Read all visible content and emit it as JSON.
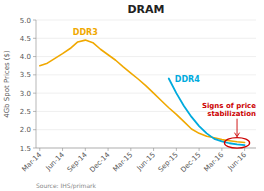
{
  "chart_data": {
    "type": "line",
    "title": "DRAM",
    "ylabel": "4Gb Spot Prices ($)",
    "source": "Source: IHS/primark",
    "xlim": [
      -0.5,
      28.5
    ],
    "xticks": [
      {
        "value": 0,
        "label": "Mar-14"
      },
      {
        "value": 3,
        "label": "Jun-14"
      },
      {
        "value": 6,
        "label": "Sep-14"
      },
      {
        "value": 9,
        "label": "Dec-14"
      },
      {
        "value": 12,
        "label": "Mar-15"
      },
      {
        "value": 15,
        "label": "Jun-15"
      },
      {
        "value": 18,
        "label": "Sep-15"
      },
      {
        "value": 21,
        "label": "Dec-15"
      },
      {
        "value": 24,
        "label": "Mar-16"
      },
      {
        "value": 27,
        "label": "Jun-16"
      }
    ],
    "ylim": [
      1.5,
      5.0
    ],
    "yticks": [
      1.5,
      {
        "value": 2,
        "label": "2.0"
      },
      2.5,
      {
        "value": 3,
        "label": "3.0"
      },
      3.5,
      {
        "value": 4,
        "label": "4.0"
      },
      4.5,
      {
        "value": 5,
        "label": "5.0"
      }
    ],
    "grid": true,
    "series": [
      {
        "name": "DDR3",
        "color": "#f0a800",
        "x": [
          0,
          1,
          2,
          3,
          4,
          5,
          6,
          7,
          8,
          9,
          10,
          11,
          12,
          13,
          14,
          15,
          16,
          17,
          18,
          19,
          20,
          21,
          22,
          23,
          24,
          25,
          26,
          27
        ],
        "values": [
          3.75,
          3.82,
          3.95,
          4.08,
          4.22,
          4.4,
          4.45,
          4.38,
          4.2,
          4.05,
          3.9,
          3.72,
          3.55,
          3.38,
          3.2,
          3.0,
          2.8,
          2.6,
          2.42,
          2.22,
          2.02,
          1.9,
          1.82,
          1.78,
          1.73,
          1.7,
          1.67,
          1.65
        ]
      },
      {
        "name": "DDR4",
        "color": "#00aadd",
        "x": [
          17,
          18,
          19,
          20,
          21,
          22,
          23,
          24,
          25,
          26,
          27
        ],
        "values": [
          3.4,
          3.0,
          2.65,
          2.35,
          2.1,
          1.9,
          1.75,
          1.68,
          1.63,
          1.6,
          1.58
        ]
      }
    ],
    "annotations": [
      {
        "text": "Signs of price\nstabilization",
        "color": "#cc0000"
      }
    ]
  }
}
